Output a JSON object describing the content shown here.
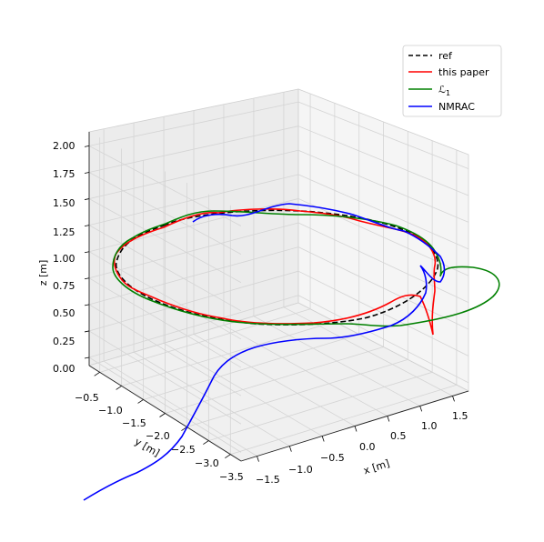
{
  "chart_data": {
    "type": "line",
    "projection": "3d",
    "xlabel": "x [m]",
    "ylabel": "y [m]",
    "zlabel": "z [m]",
    "x_ticks": [
      "−1.5",
      "−1.0",
      "−0.5",
      "0.0",
      "0.5",
      "1.0",
      "1.5"
    ],
    "y_ticks": [
      "−0.5",
      "−1.0",
      "−1.5",
      "−2.0",
      "−2.5",
      "−3.0",
      "−3.5"
    ],
    "z_ticks": [
      "0.00",
      "0.25",
      "0.50",
      "0.75",
      "1.00",
      "1.25",
      "1.50",
      "1.75",
      "2.00"
    ],
    "grid": true,
    "legend_position": "top-right",
    "series": [
      {
        "name": "ref",
        "color": "#000000",
        "style": "dashed"
      },
      {
        "name": "this paper",
        "color": "#ff0000",
        "style": "solid"
      },
      {
        "name": "ℒ",
        "subscript": "1",
        "color": "#008000",
        "style": "solid"
      },
      {
        "name": "NMRAC",
        "color": "#0000ff",
        "style": "solid"
      }
    ]
  }
}
